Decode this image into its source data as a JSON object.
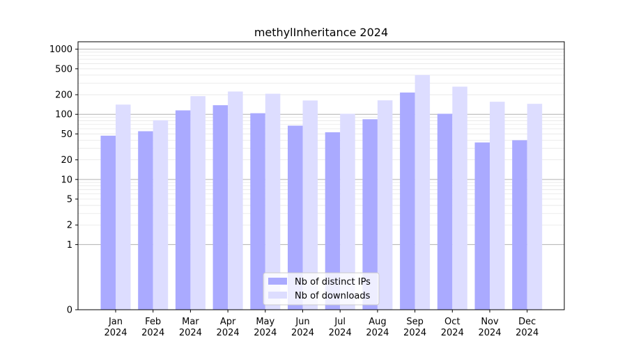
{
  "chart_data": {
    "type": "bar",
    "title": "methylInheritance 2024",
    "xlabel": "",
    "ylabel": "",
    "y_scale": "symlog",
    "ylim": [
      0,
      1300
    ],
    "y_ticks": [
      0,
      1,
      2,
      5,
      10,
      20,
      50,
      100,
      200,
      500,
      1000
    ],
    "grid": "horizontal",
    "legend_position": "bottom-center",
    "categories": [
      {
        "month": "Jan",
        "year": "2024"
      },
      {
        "month": "Feb",
        "year": "2024"
      },
      {
        "month": "Mar",
        "year": "2024"
      },
      {
        "month": "Apr",
        "year": "2024"
      },
      {
        "month": "May",
        "year": "2024"
      },
      {
        "month": "Jun",
        "year": "2024"
      },
      {
        "month": "Jul",
        "year": "2024"
      },
      {
        "month": "Aug",
        "year": "2024"
      },
      {
        "month": "Sep",
        "year": "2024"
      },
      {
        "month": "Oct",
        "year": "2024"
      },
      {
        "month": "Nov",
        "year": "2024"
      },
      {
        "month": "Dec",
        "year": "2024"
      }
    ],
    "series": [
      {
        "name": "Nb of distinct IPs",
        "color": "#aaaaff",
        "values": [
          47,
          55,
          115,
          138,
          104,
          67,
          53,
          84,
          216,
          102,
          37,
          40
        ]
      },
      {
        "name": "Nb of downloads",
        "color": "#ddddff",
        "values": [
          141,
          81,
          190,
          224,
          207,
          163,
          102,
          164,
          402,
          266,
          156,
          145
        ]
      }
    ]
  }
}
